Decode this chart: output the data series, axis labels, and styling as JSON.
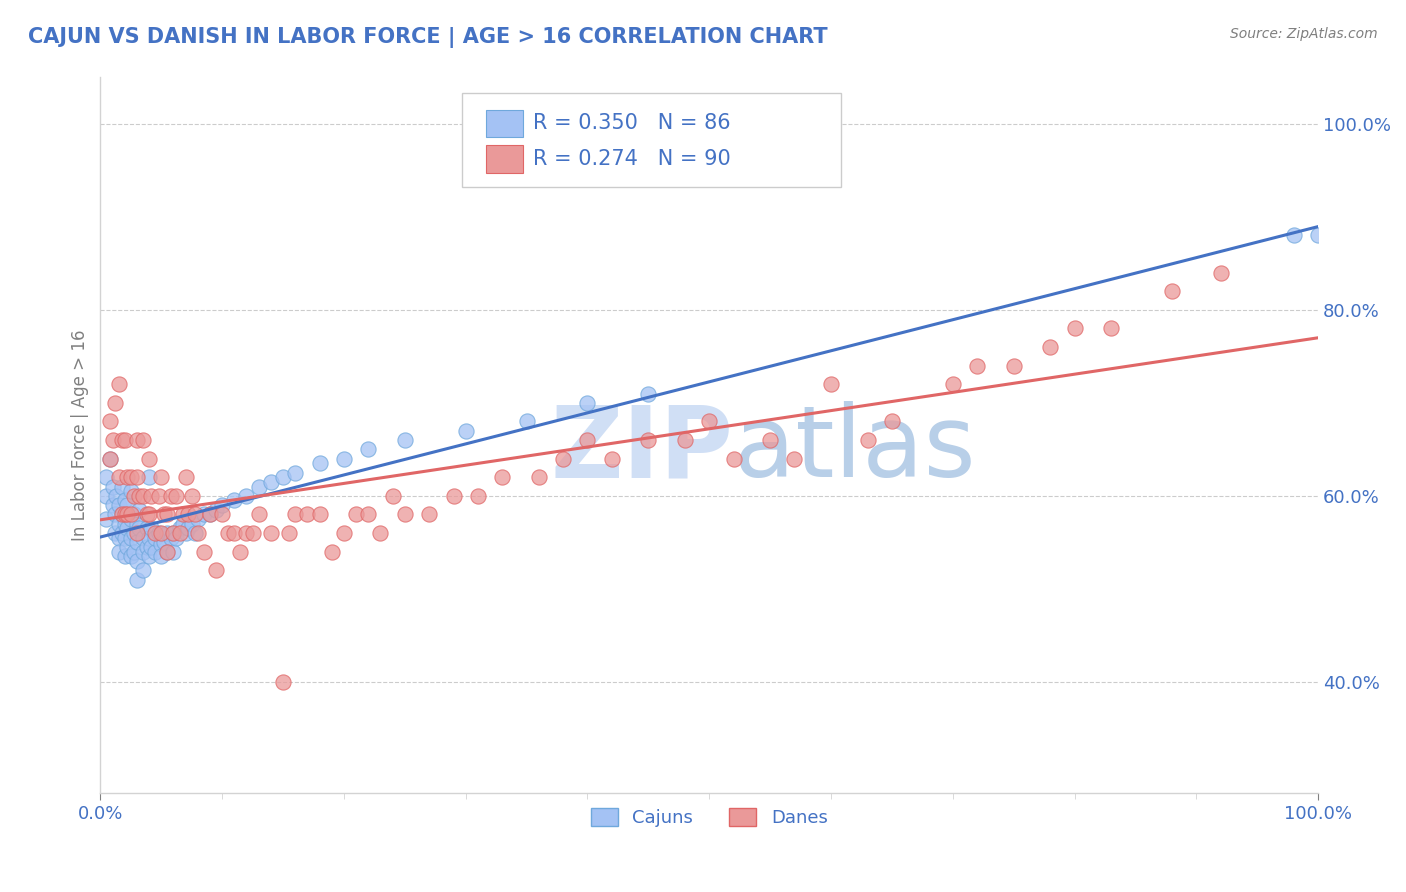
{
  "title": "CAJUN VS DANISH IN LABOR FORCE | AGE > 16 CORRELATION CHART",
  "source_text": "Source: ZipAtlas.com",
  "ylabel": "In Labor Force | Age > 16",
  "xlim": [
    0.0,
    1.0
  ],
  "ylim": [
    0.28,
    1.05
  ],
  "cajun_color": "#a4c2f4",
  "cajun_edge_color": "#6fa8dc",
  "dane_color": "#ea9999",
  "dane_edge_color": "#e06666",
  "cajun_line_color": "#4472c4",
  "dane_line_color": "#e06666",
  "cajun_R": 0.35,
  "cajun_N": 86,
  "dane_R": 0.274,
  "dane_N": 90,
  "legend_color": "#4472c4",
  "watermark_color": "#d0dff5",
  "background_color": "#ffffff",
  "grid_color": "#c0c0c0",
  "title_color": "#4472c4",
  "axis_label_color": "#4472c4",
  "cajun_x": [
    0.005,
    0.005,
    0.005,
    0.008,
    0.01,
    0.01,
    0.012,
    0.012,
    0.013,
    0.015,
    0.015,
    0.015,
    0.015,
    0.018,
    0.018,
    0.018,
    0.02,
    0.02,
    0.02,
    0.02,
    0.02,
    0.022,
    0.022,
    0.022,
    0.025,
    0.025,
    0.025,
    0.025,
    0.028,
    0.028,
    0.028,
    0.03,
    0.03,
    0.03,
    0.03,
    0.032,
    0.032,
    0.035,
    0.035,
    0.035,
    0.038,
    0.038,
    0.04,
    0.04,
    0.04,
    0.042,
    0.042,
    0.045,
    0.045,
    0.048,
    0.05,
    0.05,
    0.052,
    0.055,
    0.055,
    0.058,
    0.06,
    0.06,
    0.062,
    0.065,
    0.068,
    0.07,
    0.072,
    0.075,
    0.078,
    0.08,
    0.085,
    0.09,
    0.095,
    0.1,
    0.11,
    0.12,
    0.13,
    0.14,
    0.15,
    0.16,
    0.18,
    0.2,
    0.22,
    0.25,
    0.3,
    0.35,
    0.4,
    0.45,
    0.98,
    1.0
  ],
  "cajun_y": [
    0.62,
    0.6,
    0.575,
    0.64,
    0.61,
    0.59,
    0.58,
    0.56,
    0.6,
    0.57,
    0.555,
    0.54,
    0.59,
    0.61,
    0.58,
    0.56,
    0.595,
    0.575,
    0.555,
    0.535,
    0.57,
    0.59,
    0.565,
    0.545,
    0.575,
    0.555,
    0.535,
    0.605,
    0.58,
    0.56,
    0.54,
    0.57,
    0.55,
    0.53,
    0.51,
    0.565,
    0.585,
    0.555,
    0.54,
    0.52,
    0.565,
    0.545,
    0.555,
    0.535,
    0.62,
    0.545,
    0.565,
    0.54,
    0.555,
    0.56,
    0.548,
    0.535,
    0.55,
    0.56,
    0.54,
    0.555,
    0.56,
    0.54,
    0.555,
    0.565,
    0.57,
    0.56,
    0.565,
    0.57,
    0.56,
    0.575,
    0.58,
    0.58,
    0.585,
    0.59,
    0.595,
    0.6,
    0.61,
    0.615,
    0.62,
    0.625,
    0.635,
    0.64,
    0.65,
    0.66,
    0.67,
    0.68,
    0.7,
    0.71,
    0.88,
    0.88
  ],
  "dane_x": [
    0.008,
    0.008,
    0.01,
    0.012,
    0.015,
    0.015,
    0.018,
    0.018,
    0.02,
    0.02,
    0.022,
    0.022,
    0.025,
    0.025,
    0.028,
    0.03,
    0.03,
    0.03,
    0.032,
    0.035,
    0.035,
    0.038,
    0.04,
    0.04,
    0.042,
    0.045,
    0.048,
    0.05,
    0.05,
    0.052,
    0.055,
    0.055,
    0.058,
    0.06,
    0.062,
    0.065,
    0.068,
    0.07,
    0.072,
    0.075,
    0.078,
    0.08,
    0.085,
    0.09,
    0.095,
    0.1,
    0.105,
    0.11,
    0.115,
    0.12,
    0.125,
    0.13,
    0.14,
    0.15,
    0.155,
    0.16,
    0.17,
    0.18,
    0.19,
    0.2,
    0.21,
    0.22,
    0.23,
    0.24,
    0.25,
    0.27,
    0.29,
    0.31,
    0.33,
    0.36,
    0.38,
    0.4,
    0.42,
    0.45,
    0.48,
    0.5,
    0.52,
    0.55,
    0.57,
    0.6,
    0.63,
    0.65,
    0.7,
    0.72,
    0.75,
    0.78,
    0.8,
    0.83,
    0.88,
    0.92
  ],
  "dane_y": [
    0.68,
    0.64,
    0.66,
    0.7,
    0.72,
    0.62,
    0.66,
    0.58,
    0.66,
    0.58,
    0.62,
    0.58,
    0.62,
    0.58,
    0.6,
    0.66,
    0.62,
    0.56,
    0.6,
    0.66,
    0.6,
    0.58,
    0.64,
    0.58,
    0.6,
    0.56,
    0.6,
    0.56,
    0.62,
    0.58,
    0.58,
    0.54,
    0.6,
    0.56,
    0.6,
    0.56,
    0.58,
    0.62,
    0.58,
    0.6,
    0.58,
    0.56,
    0.54,
    0.58,
    0.52,
    0.58,
    0.56,
    0.56,
    0.54,
    0.56,
    0.56,
    0.58,
    0.56,
    0.4,
    0.56,
    0.58,
    0.58,
    0.58,
    0.54,
    0.56,
    0.58,
    0.58,
    0.56,
    0.6,
    0.58,
    0.58,
    0.6,
    0.6,
    0.62,
    0.62,
    0.64,
    0.66,
    0.64,
    0.66,
    0.66,
    0.68,
    0.64,
    0.66,
    0.64,
    0.72,
    0.66,
    0.68,
    0.72,
    0.74,
    0.74,
    0.76,
    0.78,
    0.78,
    0.82,
    0.84
  ],
  "yticks": [
    0.4,
    0.6,
    0.8,
    1.0
  ],
  "ytick_labels": [
    "40.0%",
    "60.0%",
    "80.0%",
    "100.0%"
  ]
}
